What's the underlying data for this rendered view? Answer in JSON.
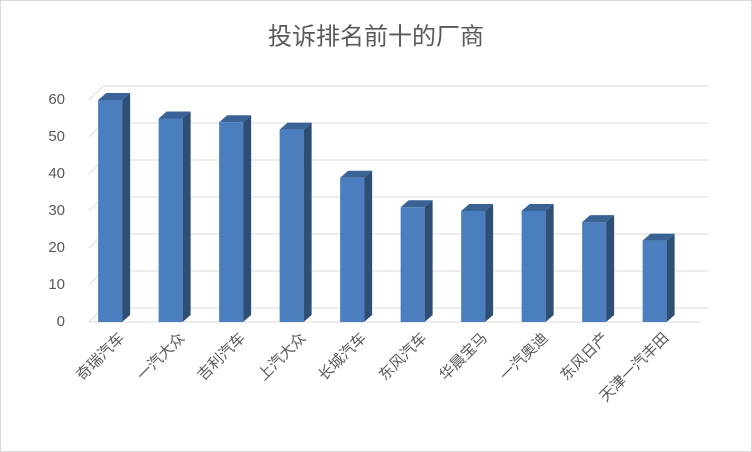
{
  "chart_data": {
    "type": "bar3d",
    "title": "投诉排名前十的厂商",
    "categories": [
      "奇瑞汽车",
      "一汽大众",
      "吉利汽车",
      "上汽大众",
      "长城汽车",
      "东风汽车",
      "华晨宝马",
      "一汽奥迪",
      "东风日产",
      "天津一汽丰田"
    ],
    "values": [
      60,
      55,
      54,
      52,
      39,
      31,
      30,
      30,
      27,
      22
    ],
    "color": "#4a7ebf",
    "ylim": [
      0,
      60
    ],
    "yticks": [
      0,
      10,
      20,
      30,
      40,
      50,
      60
    ],
    "grid": true
  }
}
